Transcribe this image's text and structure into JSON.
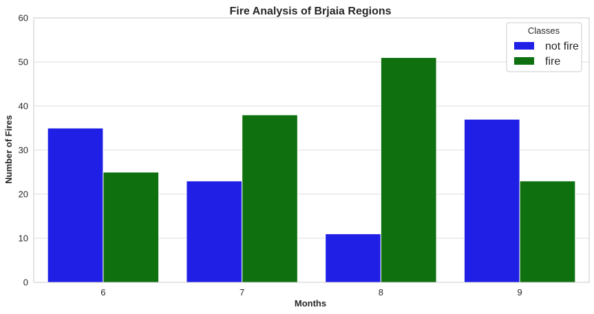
{
  "chart_data": {
    "type": "bar",
    "title": "Fire Analysis of Brjaia Regions",
    "xlabel": "Months",
    "ylabel": "Number of Fires",
    "categories": [
      "6",
      "7",
      "8",
      "9"
    ],
    "series": [
      {
        "name": "not fire",
        "values": [
          35,
          23,
          11,
          37
        ],
        "color": "#1f1fe6"
      },
      {
        "name": "fire",
        "values": [
          25,
          38,
          51,
          23
        ],
        "color": "#0e700e"
      }
    ],
    "ylim": [
      0,
      60
    ],
    "yticks": [
      "0",
      "10",
      "20",
      "30",
      "40",
      "50",
      "60"
    ],
    "grid": "horizontal",
    "legend": {
      "title": "Classes",
      "placement": "top-right"
    },
    "colors": {
      "grid": "#dcdcdc",
      "frame": "#c8c8c8",
      "text": "#262626"
    }
  }
}
